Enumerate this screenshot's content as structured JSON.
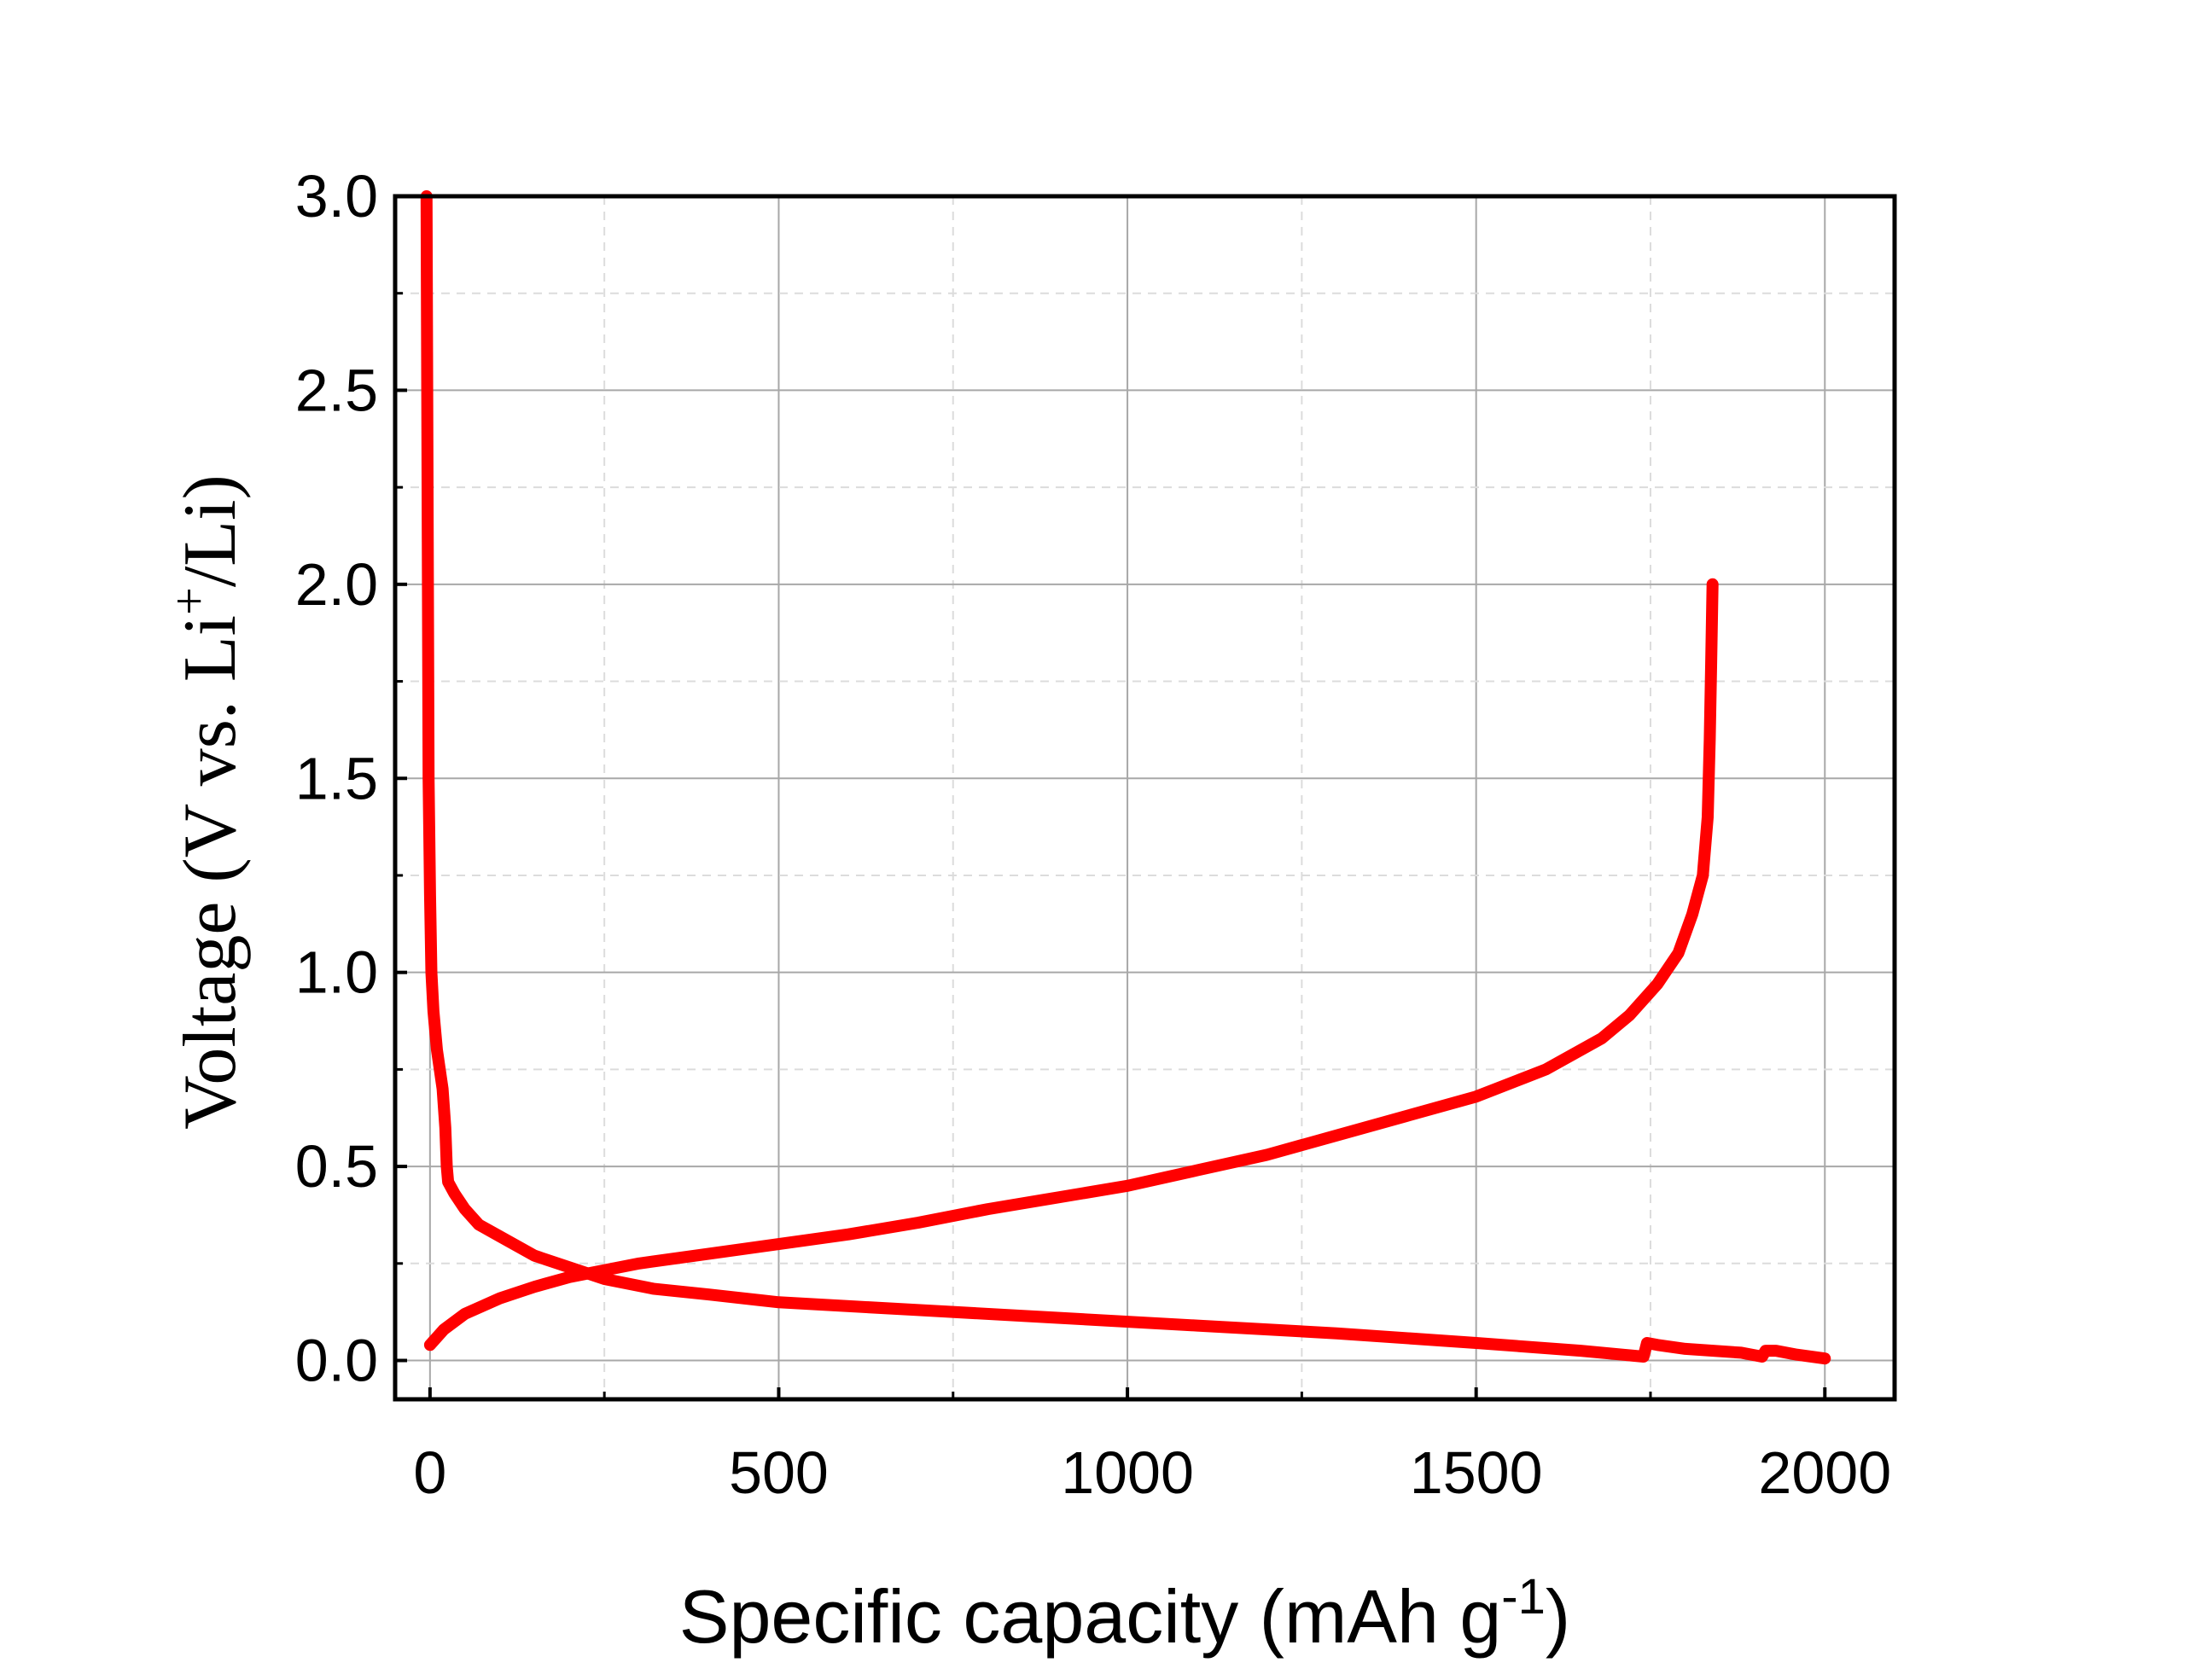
{
  "chart_data": {
    "type": "line",
    "xlabel": "Specific capacity (mAh g",
    "xlabel_sup": "-1",
    "xlabel_end": ")",
    "ylabel": "Voltage (V vs. Li",
    "ylabel_sup": "+",
    "ylabel_end": "/Li)",
    "xlim": [
      -50,
      2100
    ],
    "ylim": [
      -0.1,
      3.0
    ],
    "x_ticks": [
      0,
      500,
      1000,
      1500,
      2000
    ],
    "x_tick_labels": [
      "0",
      "500",
      "1000",
      "1500",
      "2000"
    ],
    "y_ticks": [
      0.0,
      0.5,
      1.0,
      1.5,
      2.0,
      2.5,
      3.0
    ],
    "y_tick_labels": [
      "0.0",
      "0.5",
      "1.0",
      "1.5",
      "2.0",
      "2.5",
      "3.0"
    ],
    "grid": true,
    "line_color": "#ff0000",
    "series": [
      {
        "points": [
          [
            -5,
            3.0
          ],
          [
            -4,
            2.5
          ],
          [
            -3,
            2.0
          ],
          [
            -2,
            1.5
          ],
          [
            0,
            1.2
          ],
          [
            2,
            1.0
          ],
          [
            5,
            0.9
          ],
          [
            10,
            0.8
          ],
          [
            18,
            0.7
          ],
          [
            22,
            0.6
          ],
          [
            24,
            0.5
          ],
          [
            26,
            0.46
          ],
          [
            35,
            0.43
          ],
          [
            50,
            0.39
          ],
          [
            70,
            0.35
          ],
          [
            100,
            0.32
          ],
          [
            150,
            0.27
          ],
          [
            200,
            0.24
          ],
          [
            250,
            0.21
          ],
          [
            320,
            0.185
          ],
          [
            400,
            0.17
          ],
          [
            500,
            0.15
          ],
          [
            700,
            0.13
          ],
          [
            900,
            0.11
          ],
          [
            1100,
            0.09
          ],
          [
            1300,
            0.07
          ],
          [
            1500,
            0.045
          ],
          [
            1650,
            0.025
          ],
          [
            1740,
            0.01
          ],
          [
            1745,
            0.045
          ],
          [
            1760,
            0.04
          ],
          [
            1800,
            0.03
          ],
          [
            1880,
            0.02
          ],
          [
            1910,
            0.01
          ],
          [
            1915,
            0.025
          ],
          [
            1930,
            0.025
          ],
          [
            1960,
            0.015
          ],
          [
            2000,
            0.005
          ]
        ]
      },
      {
        "points": [
          [
            0,
            0.04
          ],
          [
            20,
            0.08
          ],
          [
            50,
            0.12
          ],
          [
            100,
            0.16
          ],
          [
            150,
            0.19
          ],
          [
            200,
            0.215
          ],
          [
            300,
            0.25
          ],
          [
            400,
            0.275
          ],
          [
            500,
            0.3
          ],
          [
            600,
            0.325
          ],
          [
            700,
            0.355
          ],
          [
            800,
            0.39
          ],
          [
            900,
            0.42
          ],
          [
            1000,
            0.45
          ],
          [
            1100,
            0.49
          ],
          [
            1200,
            0.53
          ],
          [
            1300,
            0.58
          ],
          [
            1400,
            0.63
          ],
          [
            1500,
            0.68
          ],
          [
            1600,
            0.75
          ],
          [
            1680,
            0.83
          ],
          [
            1720,
            0.89
          ],
          [
            1760,
            0.97
          ],
          [
            1790,
            1.05
          ],
          [
            1810,
            1.15
          ],
          [
            1825,
            1.25
          ],
          [
            1832,
            1.4
          ],
          [
            1835,
            1.6
          ],
          [
            1837,
            1.8
          ],
          [
            1839,
            2.0
          ]
        ]
      }
    ]
  }
}
